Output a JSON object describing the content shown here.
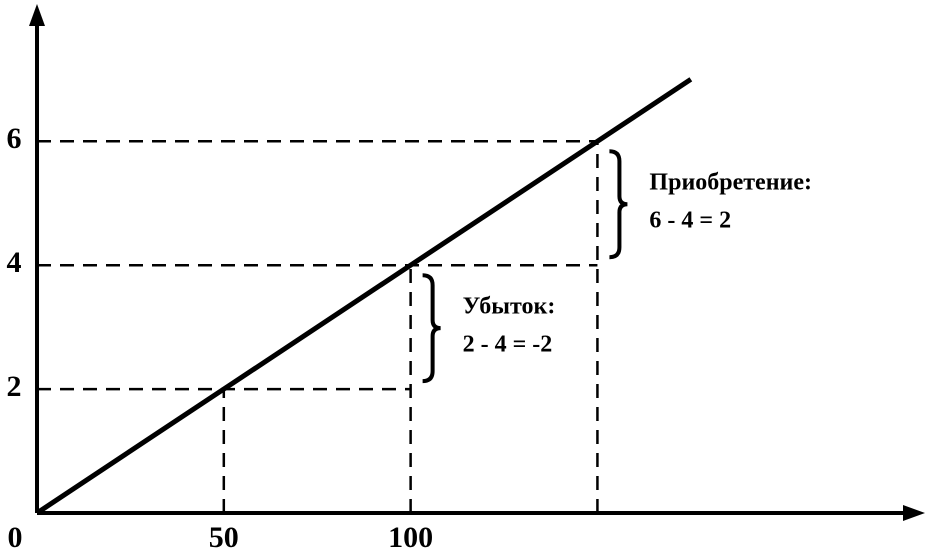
{
  "chart_data": {
    "type": "line",
    "x": [
      0,
      50,
      100,
      150,
      175
    ],
    "values": [
      0,
      2,
      4,
      6,
      7
    ],
    "color": "#000000",
    "xlim": [
      0,
      235
    ],
    "ylim": [
      0,
      8.2
    ],
    "xticks": [
      0,
      50,
      100
    ],
    "yticks": [
      2,
      4,
      6
    ],
    "guides": [
      {
        "x": 50,
        "y": 2
      },
      {
        "x": 100,
        "y": 4
      },
      {
        "x": 150,
        "y": 6
      }
    ],
    "annotations": [
      {
        "title": "Убыток:",
        "text": "2 - 4 = -2"
      },
      {
        "title": "Приобретение:",
        "text": "6 - 4 = 2"
      }
    ]
  }
}
